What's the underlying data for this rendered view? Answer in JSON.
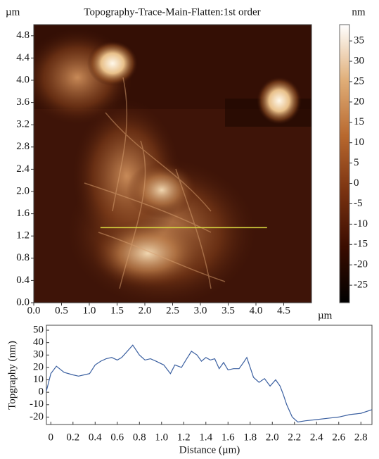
{
  "chart_data": [
    {
      "type": "image",
      "title": "Topography-Trace-Main-Flatten:1st order",
      "x_unit": "µm",
      "y_unit": "µm",
      "xlim": [
        0,
        5.0
      ],
      "ylim": [
        0,
        5.0
      ],
      "xticks": [
        {
          "value": 0,
          "label": "0.0"
        },
        0.5,
        {
          "value": 1,
          "label": "1.0"
        },
        1.5,
        {
          "value": 2,
          "label": "2.0"
        },
        2.5,
        {
          "value": 3,
          "label": "3.0"
        },
        3.5,
        {
          "value": 4,
          "label": "4.0"
        },
        4.5
      ],
      "yticks": [
        {
          "value": 0,
          "label": "0.0"
        },
        0.4,
        0.8,
        1.2,
        1.6,
        {
          "value": 2,
          "label": "2.0"
        },
        2.4,
        2.8,
        3.2,
        3.6,
        {
          "value": 4,
          "label": "4.0"
        },
        4.4,
        4.8
      ],
      "profile_line": {
        "x": [
          1.2,
          4.2
        ],
        "y": [
          1.35,
          1.35
        ],
        "color": "#d8d840"
      },
      "colorbar": {
        "label": "nm",
        "lim": [
          -29.3,
          39
        ],
        "ticks": [
          -25,
          -20,
          -15,
          -10,
          -5,
          0,
          5,
          10,
          15,
          20,
          25,
          30,
          35
        ],
        "colors": [
          "#000000",
          "#3a0c00",
          "#7a3210",
          "#b8682e",
          "#e0ae78",
          "#ffffff"
        ]
      }
    },
    {
      "type": "line",
      "xlabel": "Distance (µm)",
      "ylabel": "Topgraphy (nm)",
      "xlim": [
        -0.04,
        2.9
      ],
      "ylim": [
        -26,
        54
      ],
      "xticks": [
        0,
        0.2,
        0.4,
        0.6,
        0.8,
        {
          "value": 1,
          "label": "1.0"
        },
        1.2,
        1.4,
        1.6,
        1.8,
        {
          "value": 2,
          "label": "2.0"
        },
        2.2,
        2.4,
        2.6,
        2.8
      ],
      "yticks": [
        -20,
        -10,
        0,
        10,
        20,
        30,
        40,
        50
      ],
      "series": [
        {
          "color": "#3a5fa0",
          "x": [
            -0.04,
            0,
            0.05,
            0.12,
            0.2,
            0.25,
            0.3,
            0.35,
            0.4,
            0.45,
            0.5,
            0.55,
            0.6,
            0.64,
            0.68,
            0.74,
            0.8,
            0.85,
            0.9,
            0.95,
            1.02,
            1.08,
            1.12,
            1.18,
            1.22,
            1.27,
            1.32,
            1.36,
            1.4,
            1.44,
            1.48,
            1.52,
            1.56,
            1.6,
            1.65,
            1.7,
            1.74,
            1.77,
            1.8,
            1.83,
            1.88,
            1.93,
            1.98,
            2.03,
            2.07,
            2.1,
            2.13,
            2.18,
            2.23,
            2.3,
            2.4,
            2.5,
            2.6,
            2.7,
            2.8,
            2.9
          ],
          "values": [
            1,
            15,
            21,
            16,
            14,
            13,
            14,
            15,
            22,
            25,
            27,
            28,
            26,
            28,
            32,
            38,
            30,
            26,
            27,
            25,
            22,
            15,
            22,
            20,
            26,
            33,
            30,
            25,
            28,
            26,
            27,
            19,
            24,
            18,
            19,
            19,
            24,
            28,
            20,
            12,
            8,
            11,
            5,
            10,
            5,
            -2,
            -10,
            -20,
            -24,
            -23,
            -22,
            -21,
            -20,
            -18,
            -17,
            -14
          ]
        }
      ]
    }
  ]
}
